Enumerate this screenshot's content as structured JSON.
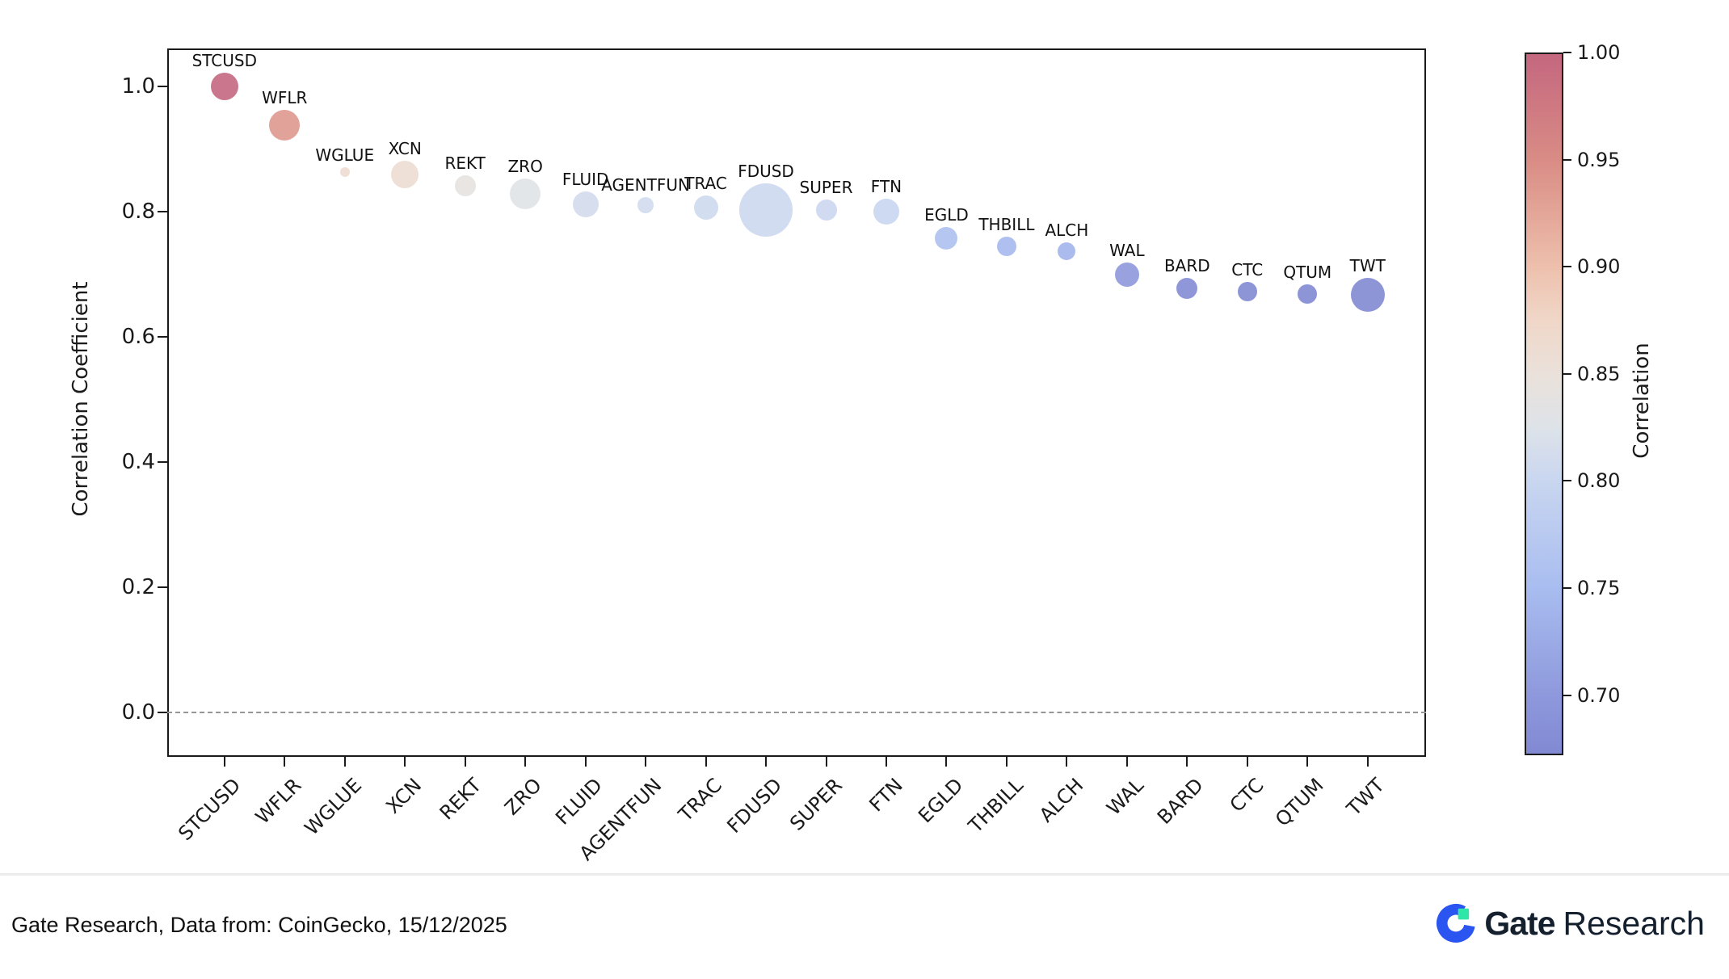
{
  "chart_data": {
    "type": "scatter",
    "subtype": "bubble",
    "ylabel": "Correlation Coefficient",
    "xlabel": "",
    "ylim": [
      -0.06,
      1.06
    ],
    "grid": false,
    "zero_line": {
      "value": 0.0,
      "style": "dashed"
    },
    "yticks": [
      {
        "value": 1.0,
        "label": "1.0"
      },
      {
        "value": 0.8,
        "label": "0.8"
      },
      {
        "value": 0.6,
        "label": "0.6"
      },
      {
        "value": 0.4,
        "label": "0.4"
      },
      {
        "value": 0.2,
        "label": "0.2"
      },
      {
        "value": 0.0,
        "label": "0.0"
      }
    ],
    "points": [
      {
        "label": "STCUSD",
        "value": 1.0,
        "size": 17
      },
      {
        "label": "WFLR",
        "value": 0.938,
        "size": 19
      },
      {
        "label": "WGLUE",
        "value": 0.863,
        "size": 6
      },
      {
        "label": "XCN",
        "value": 0.86,
        "size": 17
      },
      {
        "label": "REKT",
        "value": 0.841,
        "size": 13
      },
      {
        "label": "ZRO",
        "value": 0.829,
        "size": 19
      },
      {
        "label": "FLUID",
        "value": 0.812,
        "size": 16
      },
      {
        "label": "AGENTFUN",
        "value": 0.81,
        "size": 10
      },
      {
        "label": "TRAC",
        "value": 0.806,
        "size": 15
      },
      {
        "label": "FDUSD",
        "value": 0.803,
        "size": 33
      },
      {
        "label": "SUPER",
        "value": 0.802,
        "size": 13
      },
      {
        "label": "FTN",
        "value": 0.8,
        "size": 16
      },
      {
        "label": "EGLD",
        "value": 0.757,
        "size": 14
      },
      {
        "label": "THBILL",
        "value": 0.744,
        "size": 12
      },
      {
        "label": "ALCH",
        "value": 0.737,
        "size": 11
      },
      {
        "label": "WAL",
        "value": 0.699,
        "size": 15
      },
      {
        "label": "BARD",
        "value": 0.677,
        "size": 13
      },
      {
        "label": "CTC",
        "value": 0.672,
        "size": 12
      },
      {
        "label": "QTUM",
        "value": 0.669,
        "size": 12
      },
      {
        "label": "TWT",
        "value": 0.667,
        "size": 21
      }
    ]
  },
  "colorbar": {
    "label": "Correlation",
    "vmin": 0.672,
    "vmax": 1.0,
    "ticks": [
      {
        "value": 1.0,
        "label": "1.00"
      },
      {
        "value": 0.95,
        "label": "0.95"
      },
      {
        "value": 0.9,
        "label": "0.90"
      },
      {
        "value": 0.85,
        "label": "0.85"
      },
      {
        "value": 0.8,
        "label": "0.80"
      },
      {
        "value": 0.75,
        "label": "0.75"
      },
      {
        "value": 0.7,
        "label": "0.70"
      }
    ],
    "stops": [
      [
        1.0,
        "#c4677f"
      ],
      [
        0.95,
        "#d98c85"
      ],
      [
        0.9,
        "#eec0ad"
      ],
      [
        0.875,
        "#f0d7c8"
      ],
      [
        0.85,
        "#eae1da"
      ],
      [
        0.825,
        "#dee3e9"
      ],
      [
        0.8,
        "#c9d6f0"
      ],
      [
        0.75,
        "#a9bdf0"
      ],
      [
        0.7,
        "#8e99dc"
      ],
      [
        0.672,
        "#8289d3"
      ]
    ]
  },
  "footer": {
    "source_text": "Gate Research, Data from: CoinGecko, 15/12/2025",
    "brand_bold": "Gate",
    "brand_regular": "Research",
    "brand_blue": "#2b55f0",
    "brand_green": "#2ee6a8"
  }
}
